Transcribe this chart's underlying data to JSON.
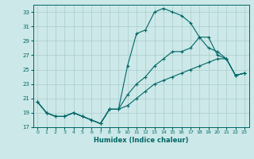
{
  "xlabel": "Humidex (Indice chaleur)",
  "ylabel": "",
  "bg_color": "#cce8e8",
  "grid_color": "#aacccc",
  "line_color": "#006666",
  "x_values": [
    0,
    1,
    2,
    3,
    4,
    5,
    6,
    7,
    8,
    9,
    10,
    11,
    12,
    13,
    14,
    15,
    16,
    17,
    18,
    19,
    20,
    21,
    22,
    23
  ],
  "line1": [
    20.5,
    19.0,
    18.5,
    18.5,
    19.0,
    18.5,
    18.0,
    17.5,
    19.5,
    19.5,
    25.5,
    30.0,
    30.5,
    33.0,
    33.5,
    33.0,
    32.5,
    31.5,
    29.5,
    29.5,
    27.0,
    26.5,
    24.2,
    24.5
  ],
  "line2": [
    20.5,
    19.0,
    18.5,
    18.5,
    19.0,
    18.5,
    18.0,
    17.5,
    19.5,
    19.5,
    21.5,
    23.0,
    24.0,
    25.5,
    26.5,
    27.5,
    27.5,
    28.0,
    29.5,
    28.0,
    27.5,
    26.5,
    24.2,
    24.5
  ],
  "line3": [
    20.5,
    19.0,
    18.5,
    18.5,
    19.0,
    18.5,
    18.0,
    17.5,
    19.5,
    19.5,
    20.0,
    21.0,
    22.0,
    23.0,
    23.5,
    24.0,
    24.5,
    25.0,
    25.5,
    26.0,
    26.5,
    26.5,
    24.2,
    24.5
  ],
  "ylim": [
    17,
    34
  ],
  "xlim": [
    -0.5,
    23.5
  ],
  "yticks": [
    17,
    19,
    21,
    23,
    25,
    27,
    29,
    31,
    33
  ],
  "xticks": [
    0,
    1,
    2,
    3,
    4,
    5,
    6,
    7,
    8,
    9,
    10,
    11,
    12,
    13,
    14,
    15,
    16,
    17,
    18,
    19,
    20,
    21,
    22,
    23
  ]
}
